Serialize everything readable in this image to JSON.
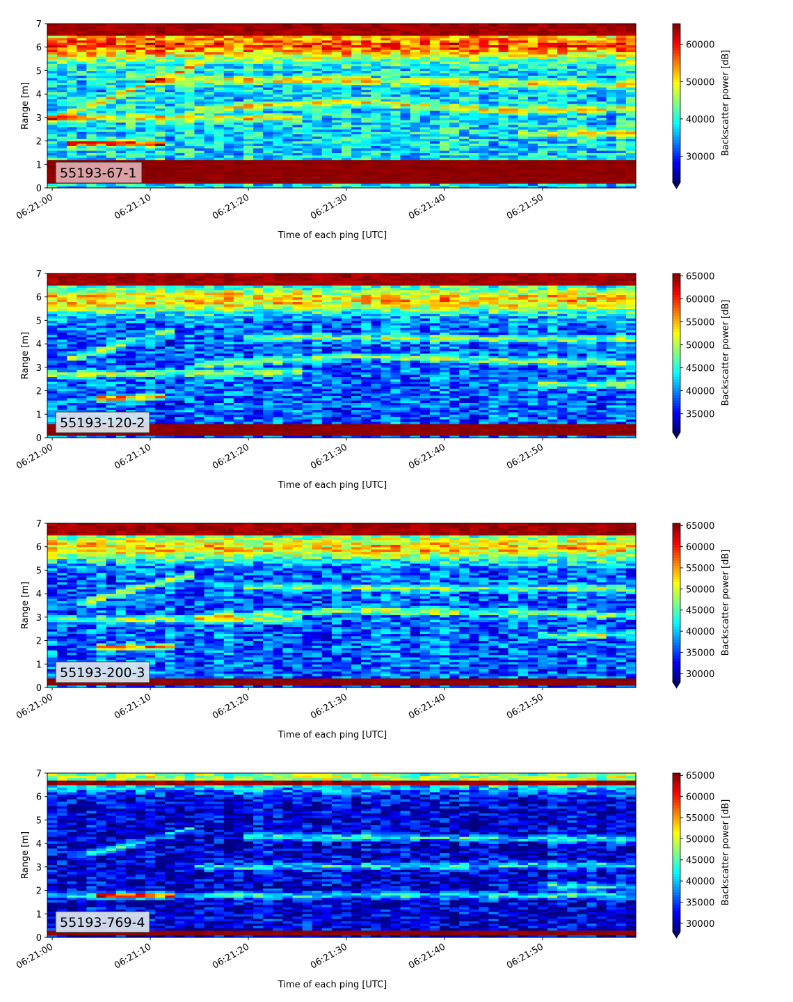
{
  "figure": {
    "xlabel": "Time of each ping [UTC]",
    "ylabel": "Range [m]",
    "colorbar_label": "Backscatter power [dB]"
  },
  "chart_data": [
    {
      "type": "heatmap",
      "label": "55193-67-1",
      "label_box_color": "#e2aeb3",
      "x_ticks": [
        "06:21:00",
        "06:21:10",
        "06:21:20",
        "06:21:30",
        "06:21:40",
        "06:21:50"
      ],
      "x_tick_seconds": [
        0,
        10,
        20,
        30,
        40,
        50
      ],
      "xlim_seconds": [
        -0.5,
        59.5
      ],
      "ylim": [
        0,
        7
      ],
      "y_ticks": [
        0,
        1,
        2,
        3,
        4,
        5,
        6,
        7
      ],
      "colorbar": {
        "min": 23000,
        "max": 65535,
        "ticks": [
          30000,
          40000,
          50000,
          60000
        ],
        "extend": "min"
      },
      "features": {
        "bottom_band": [
          0.2,
          1.2
        ],
        "top_band": [
          6.55,
          7.0
        ],
        "bright_layer_mid": 6.1,
        "noise_base": 0.35,
        "streak_diagonal": [
          [
            0,
            2.9
          ],
          [
            15,
            5.3
          ]
        ],
        "streak_fish": [
          [
            2,
            1.9
          ],
          [
            11,
            1.9
          ]
        ],
        "streak_mid": [
          [
            15,
            3.4
          ],
          [
            30,
            3.7
          ],
          [
            45,
            3.3
          ],
          [
            59,
            3.4
          ]
        ],
        "streak_upper": [
          [
            10,
            4.6
          ],
          [
            30,
            4.6
          ],
          [
            59,
            4.4
          ]
        ],
        "streak_late": [
          [
            48,
            2.3
          ],
          [
            59,
            2.35
          ]
        ],
        "streak_low": [
          [
            0,
            3.0
          ],
          [
            25,
            3.0
          ]
        ]
      }
    },
    {
      "type": "heatmap",
      "label": "55193-120-2",
      "label_box_color": "#dde7ee",
      "x_ticks": [
        "06:21:00",
        "06:21:10",
        "06:21:20",
        "06:21:30",
        "06:21:40",
        "06:21:50"
      ],
      "x_tick_seconds": [
        0,
        10,
        20,
        30,
        40,
        50
      ],
      "xlim_seconds": [
        -0.5,
        59.5
      ],
      "ylim": [
        0,
        7
      ],
      "y_ticks": [
        0,
        1,
        2,
        3,
        4,
        5,
        6,
        7
      ],
      "colorbar": {
        "min": 31000,
        "max": 65535,
        "ticks": [
          35000,
          40000,
          45000,
          50000,
          55000,
          60000,
          65000
        ],
        "extend": "min"
      },
      "features": {
        "bottom_band": [
          0.1,
          0.55
        ],
        "top_band": [
          6.55,
          7.0
        ],
        "bright_layer_mid": 5.9,
        "noise_base": 0.22,
        "streak_diagonal": [
          [
            2,
            3.4
          ],
          [
            12,
            4.6
          ]
        ],
        "streak_fish": [
          [
            5,
            1.7
          ],
          [
            11,
            1.75
          ]
        ],
        "streak_mid": [
          [
            15,
            3.1
          ],
          [
            30,
            3.5
          ],
          [
            45,
            3.3
          ],
          [
            59,
            3.2
          ]
        ],
        "streak_upper": [
          [
            20,
            4.3
          ],
          [
            59,
            4.2
          ]
        ],
        "streak_late": [
          [
            50,
            2.3
          ],
          [
            59,
            2.3
          ]
        ],
        "streak_low": [
          [
            0,
            2.7
          ],
          [
            25,
            2.8
          ]
        ]
      }
    },
    {
      "type": "heatmap",
      "label": "55193-200-3",
      "label_box_color": "#dde7ee",
      "x_ticks": [
        "06:21:00",
        "06:21:10",
        "06:21:20",
        "06:21:30",
        "06:21:40",
        "06:21:50"
      ],
      "x_tick_seconds": [
        0,
        10,
        20,
        30,
        40,
        50
      ],
      "xlim_seconds": [
        -0.5,
        59.5
      ],
      "ylim": [
        0,
        7
      ],
      "y_ticks": [
        0,
        1,
        2,
        3,
        4,
        5,
        6,
        7
      ],
      "colorbar": {
        "min": 28000,
        "max": 65535,
        "ticks": [
          30000,
          35000,
          40000,
          45000,
          50000,
          55000,
          60000,
          65000
        ],
        "extend": "min"
      },
      "features": {
        "bottom_band": [
          0.1,
          0.4
        ],
        "top_band": [
          6.5,
          7.0
        ],
        "bright_layer_mid": 6.0,
        "noise_base": 0.22,
        "streak_diagonal": [
          [
            3,
            3.6
          ],
          [
            14,
            4.8
          ]
        ],
        "streak_fish": [
          [
            5,
            1.7
          ],
          [
            12,
            1.75
          ]
        ],
        "streak_mid": [
          [
            15,
            3.0
          ],
          [
            30,
            3.3
          ],
          [
            45,
            3.2
          ],
          [
            59,
            3.1
          ]
        ],
        "streak_upper": [
          [
            20,
            4.3
          ],
          [
            59,
            4.2
          ]
        ],
        "streak_late": [
          [
            50,
            2.2
          ],
          [
            59,
            2.3
          ]
        ],
        "streak_low": [
          [
            0,
            2.9
          ],
          [
            25,
            2.9
          ]
        ]
      }
    },
    {
      "type": "heatmap",
      "label": "55193-769-4",
      "label_box_color": "#dde7ee",
      "x_ticks": [
        "06:21:00",
        "06:21:10",
        "06:21:20",
        "06:21:30",
        "06:21:40",
        "06:21:50"
      ],
      "x_tick_seconds": [
        0,
        10,
        20,
        30,
        40,
        50
      ],
      "xlim_seconds": [
        -0.5,
        59.5
      ],
      "ylim": [
        0,
        7
      ],
      "y_ticks": [
        0,
        1,
        2,
        3,
        4,
        5,
        6,
        7
      ],
      "colorbar": {
        "min": 28000,
        "max": 65535,
        "ticks": [
          30000,
          35000,
          40000,
          45000,
          50000,
          55000,
          60000,
          65000
        ],
        "extend": "min"
      },
      "features": {
        "bottom_band": [
          0.1,
          0.3
        ],
        "top_band": [
          6.45,
          6.7
        ],
        "bright_layer_mid": 6.85,
        "noise_base": 0.08,
        "streak_diagonal": [
          [
            3,
            3.5
          ],
          [
            14,
            4.6
          ]
        ],
        "streak_fish": [
          [
            5,
            1.8
          ],
          [
            12,
            1.8
          ]
        ],
        "streak_mid": [
          [
            15,
            3.0
          ],
          [
            59,
            3.1
          ]
        ],
        "streak_upper": [
          [
            20,
            4.3
          ],
          [
            59,
            4.2
          ]
        ],
        "streak_late": [
          [
            50,
            2.2
          ],
          [
            59,
            2.2
          ]
        ],
        "streak_low": [
          [
            0,
            1.8
          ],
          [
            59,
            1.8
          ]
        ]
      }
    }
  ]
}
